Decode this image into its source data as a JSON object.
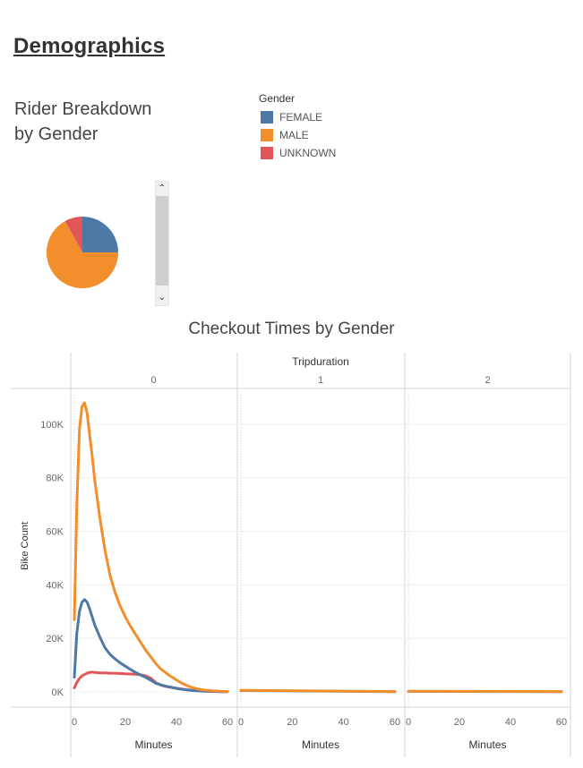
{
  "page": {
    "title": "Demographics"
  },
  "pie": {
    "title": "Rider Breakdown by Gender",
    "legend_title": "Gender"
  },
  "colors": {
    "FEMALE": "#4e79a7",
    "MALE": "#f28e2b",
    "UNKNOWN": "#e15759"
  },
  "chart_data": [
    {
      "type": "pie",
      "title": "Rider Breakdown by Gender",
      "legend_title": "Gender",
      "categories": [
        "FEMALE",
        "MALE",
        "UNKNOWN"
      ],
      "values": [
        25,
        67,
        8
      ]
    },
    {
      "type": "line",
      "title": "Checkout Times by Gender",
      "column_header": "Tripduration",
      "panels": [
        "0",
        "1",
        "2"
      ],
      "xlabel": "Minutes",
      "ylabel": "Bike Count",
      "xlim": [
        0,
        60
      ],
      "ylim": [
        0,
        110000
      ],
      "x_ticks": [
        0,
        20,
        40,
        60
      ],
      "y_ticks": [
        0,
        20000,
        40000,
        60000,
        80000,
        100000
      ],
      "y_tick_labels": [
        "0K",
        "20K",
        "40K",
        "60K",
        "80K",
        "100K"
      ],
      "x": [
        0,
        1,
        2,
        3,
        4,
        5,
        6,
        7,
        8,
        10,
        12,
        14,
        16,
        18,
        20,
        22,
        24,
        26,
        28,
        30,
        32,
        34,
        36,
        38,
        40,
        42,
        44,
        46,
        48,
        50,
        52,
        54,
        56,
        58,
        60
      ],
      "series": [
        {
          "name": "MALE",
          "panel": 0,
          "values": [
            27000,
            70000,
            98000,
            106500,
            108000,
            104000,
            96000,
            88000,
            79000,
            65000,
            53000,
            43500,
            37000,
            32000,
            28000,
            24500,
            21500,
            18500,
            15500,
            13000,
            10500,
            8500,
            7000,
            5700,
            4500,
            3300,
            2400,
            1700,
            1200,
            800,
            600,
            400,
            300,
            200,
            150
          ]
        },
        {
          "name": "FEMALE",
          "panel": 0,
          "values": [
            5500,
            22000,
            30000,
            33500,
            34500,
            33500,
            31000,
            28000,
            25000,
            20500,
            16500,
            14000,
            12300,
            10800,
            9600,
            8400,
            7300,
            6300,
            5400,
            4300,
            3200,
            2600,
            2100,
            1700,
            1300,
            1000,
            750,
            550,
            400,
            300,
            220,
            160,
            120,
            80,
            60
          ]
        },
        {
          "name": "UNKNOWN",
          "panel": 0,
          "values": [
            1500,
            3500,
            5000,
            6000,
            6500,
            7000,
            7300,
            7400,
            7300,
            7100,
            7100,
            7000,
            7000,
            6900,
            6800,
            6700,
            6600,
            6400,
            6000,
            5100,
            3400,
            2500,
            2000,
            1700,
            1400,
            1100,
            850,
            650,
            480,
            350,
            260,
            190,
            140,
            100,
            80
          ]
        },
        {
          "name": "MALE",
          "panel": 1,
          "x": [
            0,
            60
          ],
          "values": [
            600,
            150
          ]
        },
        {
          "name": "FEMALE",
          "panel": 1,
          "x": [
            0,
            60
          ],
          "values": [
            500,
            100
          ]
        },
        {
          "name": "MALE",
          "panel": 2,
          "x": [
            0,
            60
          ],
          "values": [
            250,
            150
          ]
        },
        {
          "name": "FEMALE",
          "panel": 2,
          "x": [
            0,
            60
          ],
          "values": [
            200,
            100
          ]
        }
      ]
    }
  ]
}
